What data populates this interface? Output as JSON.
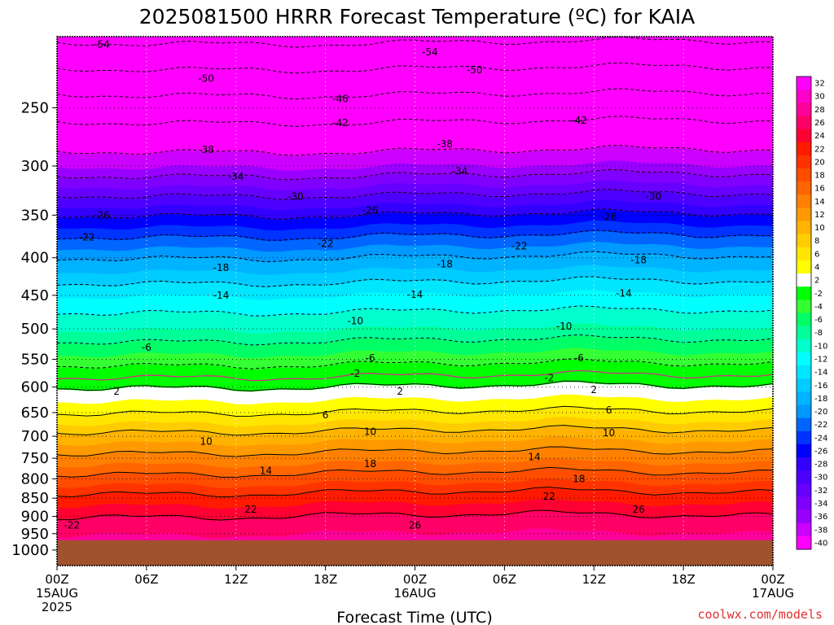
{
  "chart_data": {
    "type": "heatmap",
    "title": "2025081500 HRRR Forecast Temperature (ºC) for KAIA",
    "xlabel": "Forecast Time (UTC)",
    "ylabel": "",
    "credit": "coolwx.com/models",
    "y_scale": "log-pressure",
    "y_axis_inverted": true,
    "ylim": [
      1050,
      200
    ],
    "yticks": [
      "250",
      "300",
      "350",
      "400",
      "450",
      "500",
      "550",
      "600",
      "650",
      "700",
      "750",
      "800",
      "850",
      "900",
      "950",
      "1000"
    ],
    "xlim": [
      "2025-08-15T00Z",
      "2025-08-17T00Z"
    ],
    "xticks": [
      {
        "l1": "00Z",
        "l2": "15AUG",
        "l3": "2025"
      },
      {
        "l1": "06Z",
        "l2": "",
        "l3": ""
      },
      {
        "l1": "12Z",
        "l2": "",
        "l3": ""
      },
      {
        "l1": "18Z",
        "l2": "",
        "l3": ""
      },
      {
        "l1": "00Z",
        "l2": "16AUG",
        "l3": ""
      },
      {
        "l1": "06Z",
        "l2": "",
        "l3": ""
      },
      {
        "l1": "12Z",
        "l2": "",
        "l3": ""
      },
      {
        "l1": "18Z",
        "l2": "",
        "l3": ""
      },
      {
        "l1": "00Z",
        "l2": "17AUG",
        "l3": ""
      }
    ],
    "grid": true,
    "surface_pressure_hpa": 970,
    "colorbar": {
      "placement": "right",
      "labels": [
        "32",
        "30",
        "28",
        "26",
        "24",
        "22",
        "20",
        "18",
        "16",
        "14",
        "12",
        "10",
        "8",
        "6",
        "4",
        "2",
        "-2",
        "-4",
        "-6",
        "-8",
        "-10",
        "-12",
        "-14",
        "-16",
        "-18",
        "-20",
        "-22",
        "-24",
        "-26",
        "-28",
        "-30",
        "-32",
        "-34",
        "-36",
        "-38",
        "-40"
      ],
      "colors": [
        "#ff00ff",
        "#ff00cc",
        "#ff0099",
        "#ff0066",
        "#ff0033",
        "#ff1a00",
        "#ff3300",
        "#ff4d00",
        "#ff6600",
        "#ff8000",
        "#ff9900",
        "#ffb300",
        "#ffcc00",
        "#ffe600",
        "#ffff00",
        "#ffffff",
        "#00ff00",
        "#33ff33",
        "#00ff66",
        "#00ff99",
        "#00ffcc",
        "#00ffff",
        "#00e6ff",
        "#00ccff",
        "#00b3ff",
        "#0099ff",
        "#0066ff",
        "#0033ff",
        "#0000ff",
        "#3300ff",
        "#4d00ff",
        "#6600ff",
        "#8000ff",
        "#9900ff",
        "#cc00ff",
        "#ff00ff"
      ]
    },
    "temperature_profile": {
      "pressure_hpa": [
        200,
        250,
        300,
        350,
        400,
        450,
        500,
        550,
        600,
        650,
        700,
        750,
        800,
        850,
        900,
        950,
        1000
      ],
      "temp_c": [
        -55,
        -44,
        -36,
        -26,
        -18,
        -12,
        -8,
        -3,
        2,
        6,
        11,
        15,
        19,
        23,
        26,
        28,
        29
      ]
    },
    "contour_labels": [
      {
        "text": "-54",
        "t": 3,
        "p": 205
      },
      {
        "text": "-54",
        "t": 25,
        "p": 210
      },
      {
        "text": "-50",
        "t": 10,
        "p": 228
      },
      {
        "text": "-50",
        "t": 28,
        "p": 222
      },
      {
        "text": "-46",
        "t": 19,
        "p": 243
      },
      {
        "text": "-42",
        "t": 19,
        "p": 262
      },
      {
        "text": "-42",
        "t": 35,
        "p": 260
      },
      {
        "text": "-38",
        "t": 10,
        "p": 285
      },
      {
        "text": "-38",
        "t": 26,
        "p": 280
      },
      {
        "text": "-34",
        "t": 12,
        "p": 310
      },
      {
        "text": "-34",
        "t": 27,
        "p": 305
      },
      {
        "text": "-30",
        "t": 16,
        "p": 330
      },
      {
        "text": "-30",
        "t": 40,
        "p": 330
      },
      {
        "text": "-26",
        "t": 3,
        "p": 350
      },
      {
        "text": "-26",
        "t": 21,
        "p": 345
      },
      {
        "text": "-26",
        "t": 37,
        "p": 352
      },
      {
        "text": "-22",
        "t": 2,
        "p": 375
      },
      {
        "text": "-22",
        "t": 18,
        "p": 383
      },
      {
        "text": "-22",
        "t": 31,
        "p": 386
      },
      {
        "text": "-18",
        "t": 11,
        "p": 413
      },
      {
        "text": "-18",
        "t": 26,
        "p": 408
      },
      {
        "text": "-18",
        "t": 39,
        "p": 403
      },
      {
        "text": "-14",
        "t": 11,
        "p": 450
      },
      {
        "text": "-14",
        "t": 24,
        "p": 449
      },
      {
        "text": "-14",
        "t": 38,
        "p": 447
      },
      {
        "text": "-10",
        "t": 20,
        "p": 488
      },
      {
        "text": "-10",
        "t": 34,
        "p": 496
      },
      {
        "text": "-6",
        "t": 6,
        "p": 530
      },
      {
        "text": "-6",
        "t": 21,
        "p": 548
      },
      {
        "text": "-6",
        "t": 35,
        "p": 548
      },
      {
        "text": "-2",
        "t": 20,
        "p": 575
      },
      {
        "text": "-2",
        "t": 33,
        "p": 583
      },
      {
        "text": "2",
        "t": 4,
        "p": 608
      },
      {
        "text": "2",
        "t": 23,
        "p": 608
      },
      {
        "text": "2",
        "t": 36,
        "p": 605
      },
      {
        "text": "6",
        "t": 18,
        "p": 655
      },
      {
        "text": "6",
        "t": 37,
        "p": 645
      },
      {
        "text": "10",
        "t": 10,
        "p": 712
      },
      {
        "text": "10",
        "t": 21,
        "p": 690
      },
      {
        "text": "10",
        "t": 37,
        "p": 693
      },
      {
        "text": "14",
        "t": 14,
        "p": 780
      },
      {
        "text": "14",
        "t": 32,
        "p": 747
      },
      {
        "text": "18",
        "t": 21,
        "p": 763
      },
      {
        "text": "18",
        "t": 35,
        "p": 800
      },
      {
        "text": "22",
        "t": 13,
        "p": 880
      },
      {
        "text": "22",
        "t": 33,
        "p": 845
      },
      {
        "text": "26",
        "t": 24,
        "p": 925
      },
      {
        "text": "26",
        "t": 39,
        "p": 880
      },
      {
        "text": "-22",
        "t": 1,
        "p": 925
      }
    ]
  }
}
